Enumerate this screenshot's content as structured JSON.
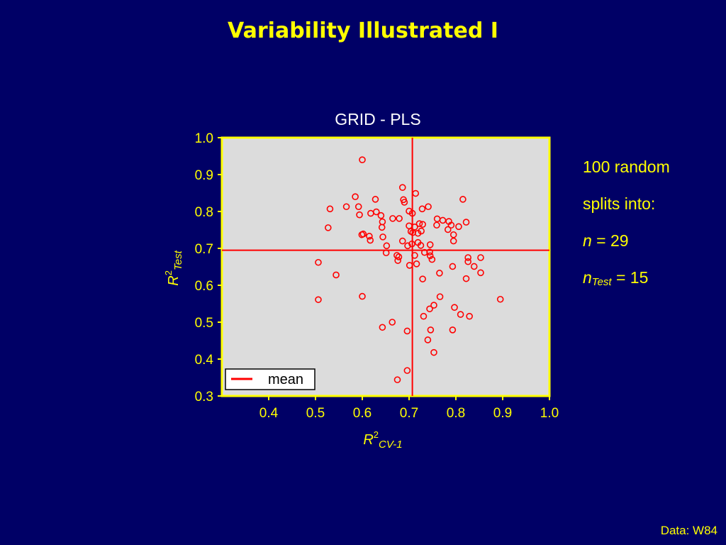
{
  "slide": {
    "title": "Variability Illustrated I",
    "footer": "Data: W84"
  },
  "notes": {
    "line1": "100 random",
    "line2": "splits into:",
    "n_symbol": "n",
    "n_eq": " = 29",
    "ntest_symbol": "n",
    "ntest_sub": "Test",
    "ntest_eq": " = 15"
  },
  "colors": {
    "background": "#000066",
    "text": "#ffff00",
    "plot_bg": "#dcdcdc",
    "frame": "#ffff00",
    "points": "#ff0000",
    "title_white": "#ffffff"
  },
  "chart_data": {
    "type": "scatter",
    "title": "GRID - PLS",
    "xlabel_main": "R",
    "xlabel_sup": "2",
    "xlabel_sub": "CV-1",
    "ylabel_main": "R",
    "ylabel_sup": "2",
    "ylabel_sub": "Test",
    "xlim": [
      0.3,
      1.0
    ],
    "ylim": [
      0.3,
      1.0
    ],
    "xticks": [
      "0.4",
      "0.5",
      "0.6",
      "0.7",
      "0.8",
      "0.9",
      "1.0"
    ],
    "yticks": [
      "0.3",
      "0.4",
      "0.5",
      "0.6",
      "0.7",
      "0.8",
      "0.9",
      "1.0"
    ],
    "legend": {
      "label": "mean",
      "position": "bottom-left"
    },
    "mean": {
      "x": 0.707,
      "y": 0.695
    },
    "points": [
      [
        0.6,
        0.94
      ],
      [
        0.686,
        0.865
      ],
      [
        0.714,
        0.849
      ],
      [
        0.688,
        0.832
      ],
      [
        0.815,
        0.833
      ],
      [
        0.531,
        0.807
      ],
      [
        0.566,
        0.813
      ],
      [
        0.585,
        0.84
      ],
      [
        0.592,
        0.813
      ],
      [
        0.628,
        0.833
      ],
      [
        0.69,
        0.825
      ],
      [
        0.728,
        0.807
      ],
      [
        0.741,
        0.813
      ],
      [
        0.618,
        0.795
      ],
      [
        0.594,
        0.791
      ],
      [
        0.63,
        0.799
      ],
      [
        0.64,
        0.789
      ],
      [
        0.7,
        0.801
      ],
      [
        0.707,
        0.795
      ],
      [
        0.665,
        0.781
      ],
      [
        0.679,
        0.781
      ],
      [
        0.643,
        0.772
      ],
      [
        0.76,
        0.78
      ],
      [
        0.772,
        0.776
      ],
      [
        0.785,
        0.773
      ],
      [
        0.822,
        0.771
      ],
      [
        0.527,
        0.756
      ],
      [
        0.642,
        0.757
      ],
      [
        0.7,
        0.761
      ],
      [
        0.712,
        0.758
      ],
      [
        0.722,
        0.767
      ],
      [
        0.729,
        0.765
      ],
      [
        0.759,
        0.763
      ],
      [
        0.79,
        0.763
      ],
      [
        0.806,
        0.759
      ],
      [
        0.602,
        0.739
      ],
      [
        0.599,
        0.737
      ],
      [
        0.615,
        0.733
      ],
      [
        0.644,
        0.731
      ],
      [
        0.704,
        0.746
      ],
      [
        0.708,
        0.743
      ],
      [
        0.726,
        0.747
      ],
      [
        0.719,
        0.741
      ],
      [
        0.783,
        0.751
      ],
      [
        0.795,
        0.737
      ],
      [
        0.617,
        0.722
      ],
      [
        0.686,
        0.72
      ],
      [
        0.706,
        0.712
      ],
      [
        0.719,
        0.716
      ],
      [
        0.745,
        0.71
      ],
      [
        0.725,
        0.708
      ],
      [
        0.795,
        0.72
      ],
      [
        0.697,
        0.707
      ],
      [
        0.652,
        0.707
      ],
      [
        0.651,
        0.688
      ],
      [
        0.674,
        0.681
      ],
      [
        0.678,
        0.677
      ],
      [
        0.712,
        0.681
      ],
      [
        0.733,
        0.689
      ],
      [
        0.744,
        0.69
      ],
      [
        0.745,
        0.68
      ],
      [
        0.749,
        0.67
      ],
      [
        0.676,
        0.667
      ],
      [
        0.701,
        0.654
      ],
      [
        0.716,
        0.658
      ],
      [
        0.506,
        0.662
      ],
      [
        0.826,
        0.675
      ],
      [
        0.853,
        0.675
      ],
      [
        0.826,
        0.664
      ],
      [
        0.839,
        0.651
      ],
      [
        0.793,
        0.651
      ],
      [
        0.765,
        0.633
      ],
      [
        0.853,
        0.634
      ],
      [
        0.544,
        0.628
      ],
      [
        0.729,
        0.617
      ],
      [
        0.822,
        0.618
      ],
      [
        0.506,
        0.561
      ],
      [
        0.6,
        0.57
      ],
      [
        0.766,
        0.569
      ],
      [
        0.753,
        0.546
      ],
      [
        0.744,
        0.536
      ],
      [
        0.797,
        0.54
      ],
      [
        0.895,
        0.562
      ],
      [
        0.731,
        0.516
      ],
      [
        0.81,
        0.521
      ],
      [
        0.829,
        0.516
      ],
      [
        0.664,
        0.5
      ],
      [
        0.643,
        0.486
      ],
      [
        0.696,
        0.476
      ],
      [
        0.746,
        0.479
      ],
      [
        0.793,
        0.479
      ],
      [
        0.74,
        0.452
      ],
      [
        0.753,
        0.418
      ],
      [
        0.696,
        0.369
      ],
      [
        0.675,
        0.344
      ]
    ]
  }
}
